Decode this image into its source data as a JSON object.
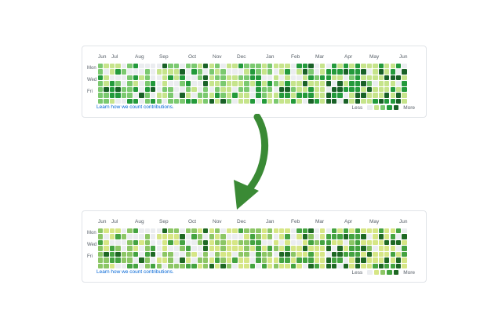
{
  "top_panel": {
    "months": [
      "Jun",
      "Jul",
      "Aug",
      "Sep",
      "Oct",
      "Nov",
      "Dec",
      "Jan",
      "Feb",
      "Mar",
      "Apr",
      "May",
      "Jun"
    ],
    "days": [
      "Mon",
      "Wed",
      "Fri"
    ],
    "learn_link": "Learn how we count contributions.",
    "legend": {
      "less": "Less",
      "more": "More"
    },
    "palette": [
      "#ebedf0",
      "#c6e48b",
      "#7bc96f",
      "#239a3b",
      "#196127"
    ]
  },
  "bottom_panel": {
    "months": [
      "Jun",
      "Jul",
      "Aug",
      "Sep",
      "Oct",
      "Nov",
      "Dec",
      "Jan",
      "Feb",
      "Mar",
      "Apr",
      "May",
      "Jun"
    ],
    "days": [
      "Mon",
      "Wed",
      "Fri"
    ],
    "learn_link": "Learn how we count contributions.",
    "legend": {
      "less": "Less",
      "more": "More"
    },
    "palette": [
      "#ebedf0",
      "#d6e685",
      "#8cc665",
      "#44a340",
      "#1e6823"
    ]
  },
  "arrow": {
    "color": "#3a8a35",
    "icon": "curved-down-arrow-icon"
  }
}
